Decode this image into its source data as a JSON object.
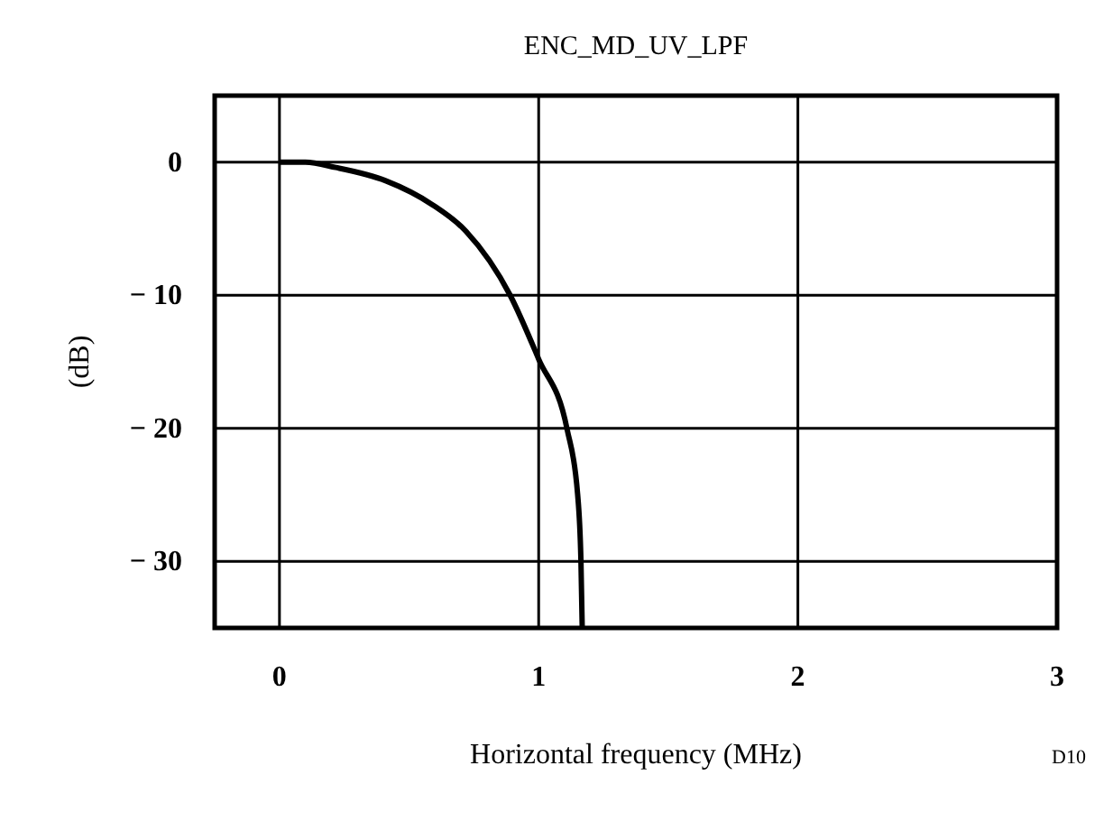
{
  "chart_data": {
    "type": "line",
    "title": "ENC_MD_UV_LPF",
    "xlabel": "Horizontal frequency (MHz)",
    "ylabel": "(dB)",
    "annotations": [
      "D10"
    ],
    "x": [
      0,
      0.1,
      0.217,
      0.41,
      0.59,
      0.72,
      0.89,
      1.0,
      1.11,
      1.15,
      1.163,
      1.168
    ],
    "series": [
      {
        "color": "#000000",
        "values": [
          0,
          0,
          -0.4,
          -1.4,
          -3.2,
          -5.2,
          -10,
          -14.8,
          -20.1,
          -24.9,
          -29.9,
          -35
        ]
      }
    ],
    "xlim": [
      -0.25,
      3
    ],
    "xticks": [
      0,
      1,
      2,
      3
    ],
    "ylim": [
      -35,
      5
    ],
    "yticks": [
      0,
      {
        "value": -10,
        "label": "− 10"
      },
      {
        "value": -20,
        "label": "− 20"
      },
      {
        "value": -30,
        "label": "− 30"
      }
    ],
    "grid": true,
    "marker": "none",
    "line_style": "solid"
  }
}
